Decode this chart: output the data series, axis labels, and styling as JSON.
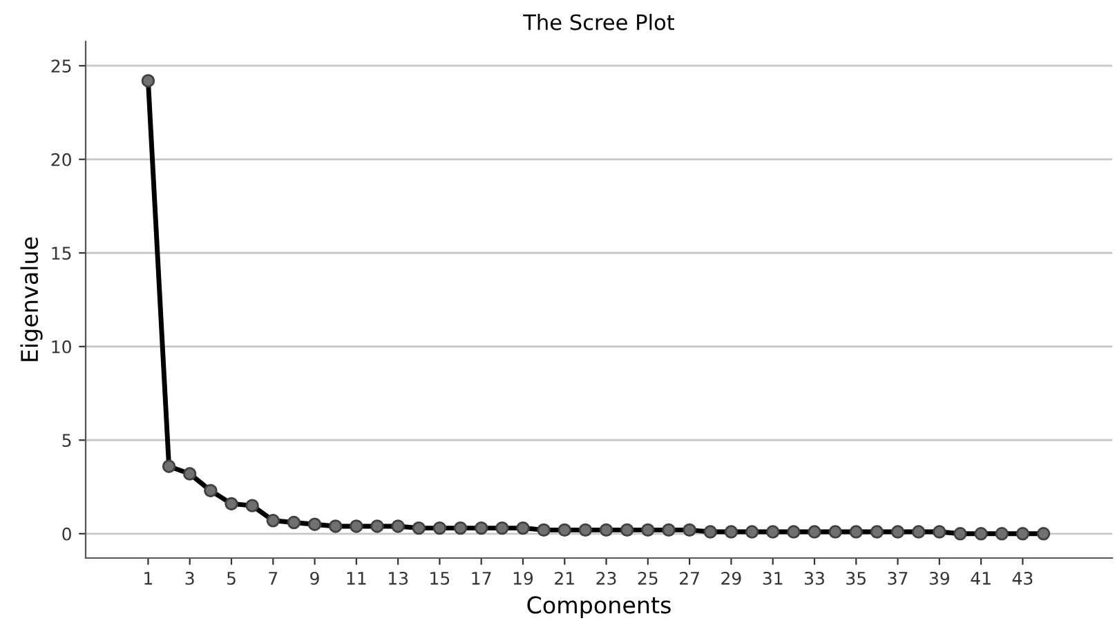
{
  "chart_data": {
    "type": "line",
    "title": "The Scree Plot",
    "xlabel": "Components",
    "ylabel": "Eigenvalue",
    "categories": [
      "1",
      null,
      "3",
      null,
      "5",
      null,
      "7",
      null,
      "9",
      null,
      "11",
      null,
      "13",
      null,
      "15",
      null,
      "17",
      null,
      "19",
      null,
      "21",
      null,
      "23",
      null,
      "25",
      null,
      "27",
      null,
      "29",
      null,
      "31",
      null,
      "33",
      null,
      "35",
      null,
      "37",
      null,
      "39",
      null,
      "41",
      null,
      "43",
      null
    ],
    "series": [
      {
        "color": "#000000",
        "values": [
          24.2,
          3.6,
          3.2,
          2.3,
          1.6,
          1.5,
          0.7,
          0.6,
          0.5,
          0.4,
          0.4,
          0.4,
          0.4,
          0.3,
          0.3,
          0.3,
          0.3,
          0.3,
          0.3,
          0.2,
          0.2,
          0.2,
          0.2,
          0.2,
          0.2,
          0.2,
          0.2,
          0.1,
          0.1,
          0.1,
          0.1,
          0.1,
          0.1,
          0.1,
          0.1,
          0.1,
          0.1,
          0.1,
          0.1,
          0.0,
          0.0,
          0.0,
          0.0,
          0.0
        ]
      }
    ],
    "ylim": [
      -1.3,
      26.3
    ],
    "yticks": [
      0,
      5,
      10,
      15,
      20,
      25
    ],
    "grid": "y",
    "marker": "circle",
    "line_style": "solid"
  }
}
